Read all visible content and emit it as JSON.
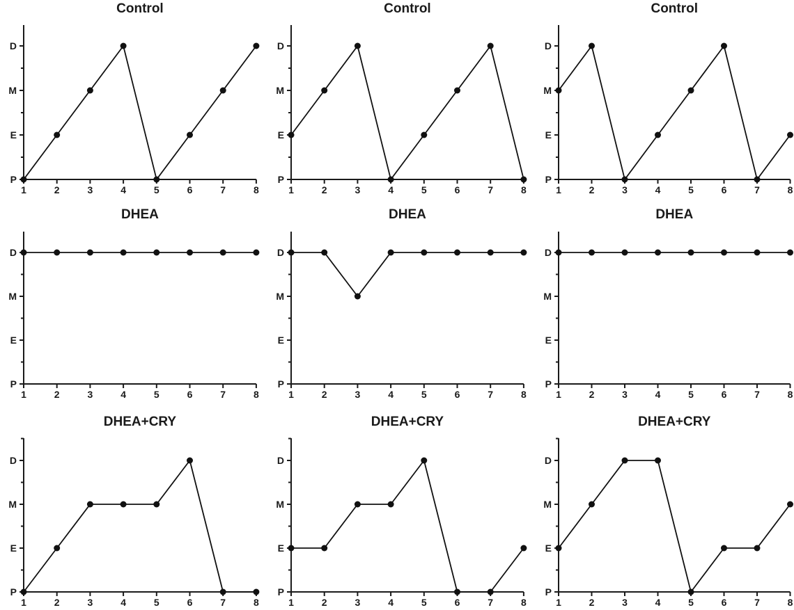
{
  "chart_data": [
    {
      "type": "line",
      "title": "Control",
      "x": [
        1,
        2,
        3,
        4,
        5,
        6,
        7,
        8
      ],
      "x_tick_labels": [
        "1",
        "2",
        "3",
        "4",
        "5",
        "6",
        "7",
        "8"
      ],
      "y_categories": [
        "P",
        "E",
        "M",
        "D"
      ],
      "y_values": [
        "P",
        "E",
        "M",
        "D",
        "P",
        "E",
        "M",
        "D"
      ],
      "grid": false,
      "color": "#111111"
    },
    {
      "type": "line",
      "title": "Control",
      "x": [
        1,
        2,
        3,
        4,
        5,
        6,
        7,
        8
      ],
      "x_tick_labels": [
        "1",
        "2",
        "3",
        "4",
        "5",
        "6",
        "7",
        "8"
      ],
      "y_categories": [
        "P",
        "E",
        "M",
        "D"
      ],
      "y_values": [
        "E",
        "M",
        "D",
        "P",
        "E",
        "M",
        "D",
        "P"
      ],
      "grid": false,
      "color": "#111111"
    },
    {
      "type": "line",
      "title": "Control",
      "x": [
        1,
        2,
        3,
        4,
        5,
        6,
        7,
        8
      ],
      "x_tick_labels": [
        "1",
        "2",
        "3",
        "4",
        "5",
        "6",
        "7",
        "8"
      ],
      "y_categories": [
        "P",
        "E",
        "M",
        "D"
      ],
      "y_values": [
        "M",
        "D",
        "P",
        "E",
        "M",
        "D",
        "P",
        "E"
      ],
      "grid": false,
      "color": "#111111"
    },
    {
      "type": "line",
      "title": "DHEA",
      "x": [
        1,
        2,
        3,
        4,
        5,
        6,
        7,
        8
      ],
      "x_tick_labels": [
        "1",
        "2",
        "3",
        "4",
        "5",
        "6",
        "7",
        "8"
      ],
      "y_categories": [
        "P",
        "E",
        "M",
        "D"
      ],
      "y_values": [
        "D",
        "D",
        "D",
        "D",
        "D",
        "D",
        "D",
        "D"
      ],
      "grid": false,
      "color": "#111111"
    },
    {
      "type": "line",
      "title": "DHEA",
      "x": [
        1,
        2,
        3,
        4,
        5,
        6,
        7,
        8
      ],
      "x_tick_labels": [
        "1",
        "2",
        "3",
        "4",
        "5",
        "6",
        "7",
        "8"
      ],
      "y_categories": [
        "P",
        "E",
        "M",
        "D"
      ],
      "y_values": [
        "D",
        "D",
        "M",
        "D",
        "D",
        "D",
        "D",
        "D"
      ],
      "grid": false,
      "color": "#111111"
    },
    {
      "type": "line",
      "title": "DHEA",
      "x": [
        1,
        2,
        3,
        4,
        5,
        6,
        7,
        8
      ],
      "x_tick_labels": [
        "1",
        "2",
        "3",
        "4",
        "5",
        "6",
        "7",
        "8"
      ],
      "y_categories": [
        "P",
        "E",
        "M",
        "D"
      ],
      "y_values": [
        "D",
        "D",
        "D",
        "D",
        "D",
        "D",
        "D",
        "D"
      ],
      "grid": false,
      "color": "#111111"
    },
    {
      "type": "line",
      "title": "DHEA+CRY",
      "x": [
        1,
        2,
        3,
        4,
        5,
        6,
        7,
        8
      ],
      "x_tick_labels": [
        "1",
        "2",
        "3",
        "4",
        "5",
        "6",
        "7",
        "8"
      ],
      "y_categories": [
        "P",
        "E",
        "M",
        "D"
      ],
      "y_values": [
        "P",
        "E",
        "M",
        "M",
        "M",
        "D",
        "P",
        "P"
      ],
      "grid": false,
      "color": "#111111"
    },
    {
      "type": "line",
      "title": "DHEA+CRY",
      "x": [
        1,
        2,
        3,
        4,
        5,
        6,
        7,
        8
      ],
      "x_tick_labels": [
        "1",
        "2",
        "3",
        "4",
        "5",
        "6",
        "7",
        "8"
      ],
      "y_categories": [
        "P",
        "E",
        "M",
        "D"
      ],
      "y_values": [
        "E",
        "E",
        "M",
        "M",
        "D",
        "P",
        "P",
        "E"
      ],
      "grid": false,
      "color": "#111111"
    },
    {
      "type": "line",
      "title": "DHEA+CRY",
      "x": [
        1,
        2,
        3,
        4,
        5,
        6,
        7,
        8
      ],
      "x_tick_labels": [
        "1",
        "2",
        "3",
        "4",
        "5",
        "6",
        "7",
        "8"
      ],
      "y_categories": [
        "P",
        "E",
        "M",
        "D"
      ],
      "y_values": [
        "E",
        "M",
        "D",
        "D",
        "P",
        "E",
        "E",
        "M"
      ],
      "grid": false,
      "color": "#111111"
    }
  ]
}
